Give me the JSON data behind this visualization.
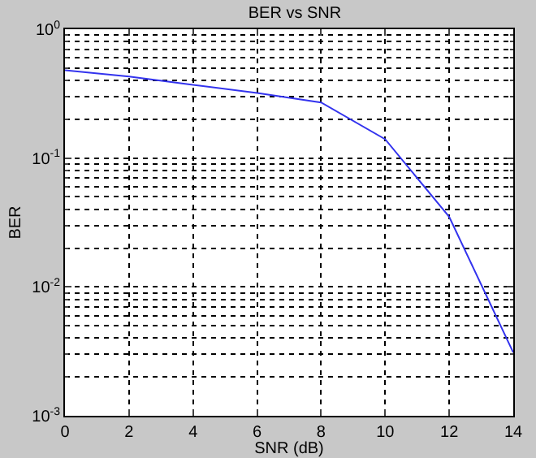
{
  "chart_data": {
    "type": "line",
    "title": "BER vs SNR",
    "xlabel": "SNR (dB)",
    "ylabel": "BER",
    "x": [
      0,
      2,
      4,
      6,
      8,
      10,
      12,
      14
    ],
    "series": [
      {
        "color": "#3333ee",
        "values": [
          0.48,
          0.43,
          0.37,
          0.32,
          0.27,
          0.14,
          0.035,
          0.0031
        ]
      }
    ],
    "log": "y",
    "xlim": [
      0,
      14
    ],
    "xticks": [
      0,
      2,
      4,
      6,
      8,
      10,
      12,
      14
    ],
    "ylim": [
      0.001,
      1
    ],
    "yticks": [
      {
        "value": 0.001,
        "label": "10$^{-3}$"
      },
      {
        "value": 0.01,
        "label": "10$^{-2}$"
      },
      {
        "value": 0.1,
        "label": "10$^{-1}$"
      },
      {
        "value": 1,
        "label": "10$^{0}$"
      }
    ],
    "grid": true,
    "legend": false,
    "line_style": "solid",
    "marker": "none"
  }
}
